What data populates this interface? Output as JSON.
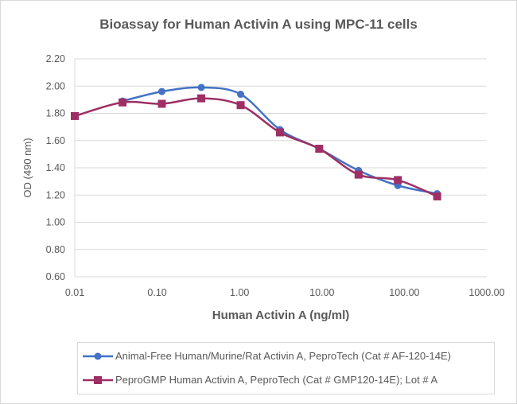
{
  "chart_data": {
    "type": "line",
    "title": "Bioassay for Human Activin A using MPC-11 cells",
    "xlabel": "Human Activin A (ng/ml)",
    "ylabel": "OD (490 nm)",
    "xscale": "log",
    "xlim": [
      0.01,
      1000
    ],
    "ylim": [
      0.6,
      2.2
    ],
    "xticks": [
      "0.01",
      "0.10",
      "1.00",
      "10.00",
      "100.00",
      "1000.00"
    ],
    "yticks": [
      "0.60",
      "0.80",
      "1.00",
      "1.20",
      "1.40",
      "1.60",
      "1.80",
      "2.00",
      "2.20"
    ],
    "grid": "horizontal",
    "legend_position": "bottom",
    "smoothed": true,
    "series": [
      {
        "name": "Animal-Free Human/Murine/Rat Activin A, PeproTech (Cat # AF-120-14E)",
        "color": "#4472C4",
        "marker": "circle",
        "x": [
          0.038,
          0.114,
          0.343,
          1.03,
          3.09,
          9.26,
          27.8,
          83.3,
          250
        ],
        "y": [
          1.89,
          1.96,
          1.99,
          1.94,
          1.68,
          1.54,
          1.38,
          1.27,
          1.21
        ]
      },
      {
        "name": "PeproGMP Human Activin A, PeproTech (Cat # GMP120-14E); Lot # A",
        "color": "#9E2F64",
        "marker": "square",
        "x": [
          0.01,
          0.038,
          0.114,
          0.343,
          1.03,
          3.09,
          9.26,
          27.8,
          83.3,
          250
        ],
        "y": [
          1.78,
          1.88,
          1.87,
          1.91,
          1.86,
          1.66,
          1.54,
          1.35,
          1.31,
          1.19
        ]
      }
    ]
  }
}
